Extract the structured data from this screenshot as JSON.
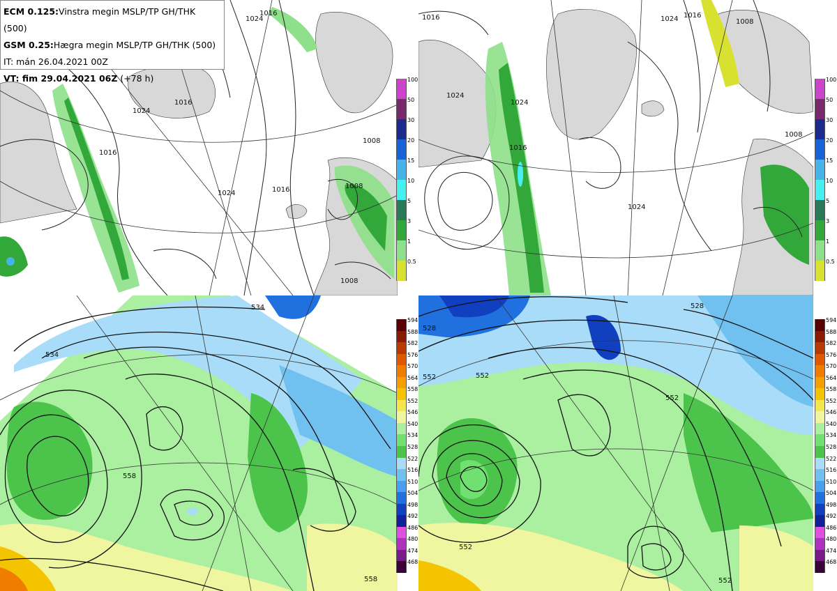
{
  "legend": {
    "ecm_label": "ECM 0.125:",
    "ecm_desc": "Vinstra megin MSLP/TP GH/THK (500)",
    "gsm_label": "GSM 0.25:",
    "gsm_desc": "Hægra megin MSLP/TP GH/THK (500)",
    "it_text": "IT: mán 26.04.2021 00Z",
    "vt_label": "VT: fim 29.04.2021 06Z",
    "vt_suffix": " (+78 h)"
  },
  "precip_colorbar": {
    "levels": [
      "100",
      "50",
      "30",
      "20",
      "15",
      "10",
      "5",
      "3",
      "1",
      "0.5"
    ],
    "colors": [
      "#cc44cc",
      "#7a2a6a",
      "#1c2a90",
      "#1664d8",
      "#46b4e8",
      "#46f0f0",
      "#2a7a5a",
      "#33a83a",
      "#8ee08a",
      "#d8e030"
    ]
  },
  "thk_colorbar": {
    "levels": [
      "594",
      "588",
      "582",
      "576",
      "570",
      "564",
      "558",
      "552",
      "546",
      "540",
      "534",
      "528",
      "522",
      "516",
      "510",
      "504",
      "498",
      "492",
      "486",
      "480",
      "474",
      "468"
    ],
    "colors": [
      "#5a0000",
      "#8a1a00",
      "#b83a00",
      "#e05800",
      "#f07c00",
      "#f5a000",
      "#f5c400",
      "#f5e64a",
      "#f0f5a0",
      "#aaf0a0",
      "#70e070",
      "#4cc44c",
      "#a8dcf8",
      "#70c0f0",
      "#4aa0f0",
      "#2070e0",
      "#1040c0",
      "#10209a",
      "#e050e0",
      "#b030c0",
      "#7a1a8a",
      "#3a003a"
    ]
  },
  "maps": {
    "top_left": {
      "isobar_labels": [
        "1024",
        "1016",
        "1024",
        "1016",
        "1016",
        "1024",
        "1016",
        "1008",
        "1008",
        "1008"
      ]
    },
    "top_right": {
      "isobar_labels": [
        "1016",
        "1024",
        "1024",
        "1024",
        "1016",
        "1024",
        "1016",
        "1008",
        "1008"
      ]
    },
    "bottom_left": {
      "contour_labels": [
        "534",
        "534",
        "558",
        "558"
      ]
    },
    "bottom_right": {
      "contour_labels": [
        "528",
        "552",
        "552",
        "552",
        "552",
        "528",
        "552"
      ]
    }
  }
}
